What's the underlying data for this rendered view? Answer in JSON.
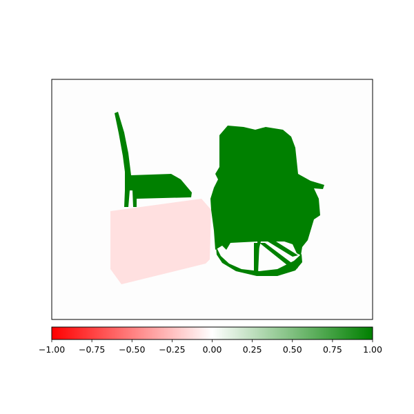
{
  "chart_data": {
    "type": "heatmap",
    "title": "",
    "xlabel": "",
    "ylabel": "",
    "grid": false,
    "main_axes": {
      "x_ticks": [],
      "y_ticks": []
    },
    "image_content": {
      "background_value": 0.0,
      "objects": [
        {
          "shape": "chair-left",
          "value": 1.0
        },
        {
          "shape": "armchair-right",
          "value": 1.0
        },
        {
          "shape": "box-bottom-left",
          "value": -0.12
        }
      ]
    },
    "colorbar": {
      "orientation": "horizontal",
      "vmin": -1.0,
      "vmax": 1.0,
      "colors": {
        "low": "#ff0000",
        "mid": "#ffffff",
        "high": "#008000"
      },
      "ticks": [
        -1.0,
        -0.75,
        -0.5,
        -0.25,
        0.0,
        0.25,
        0.5,
        0.75,
        1.0
      ],
      "tick_labels": [
        "−1.00",
        "−0.75",
        "−0.50",
        "−0.25",
        "0.00",
        "0.25",
        "0.50",
        "0.75",
        "1.00"
      ]
    }
  }
}
